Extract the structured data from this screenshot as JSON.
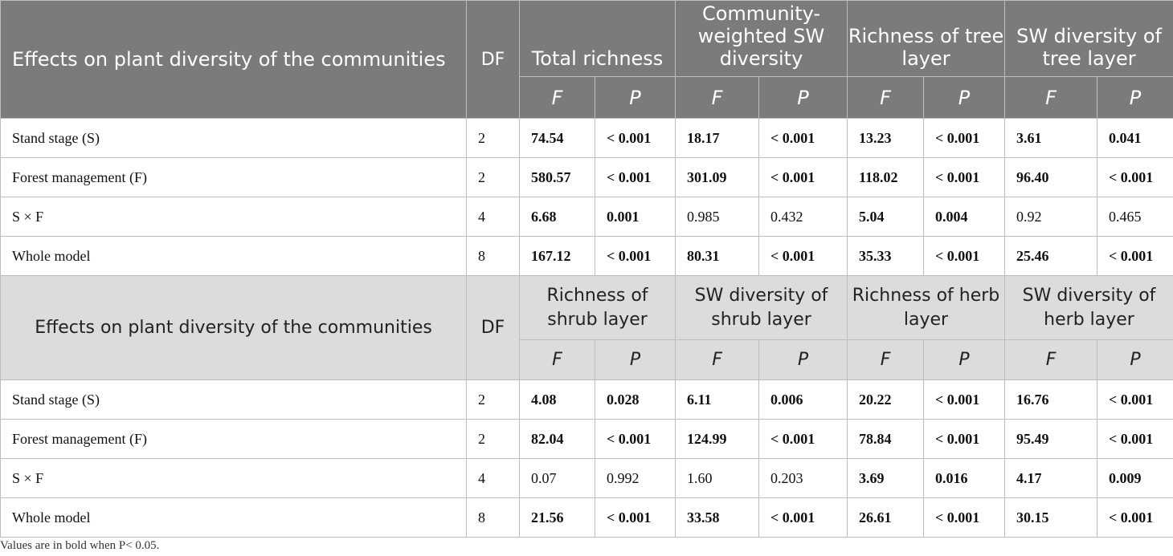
{
  "table1": {
    "title": "Effects on plant diversity of the communities",
    "df_label": "DF",
    "groups": [
      "Total richness",
      "Community-weighted SW diversity",
      "Richness of tree layer",
      "SW diversity of tree layer"
    ],
    "f_label": "F",
    "p_label": "P",
    "rows": [
      {
        "label": "Stand stage (S)",
        "df": "2",
        "values": [
          "74.54",
          "< 0.001",
          "18.17",
          "< 0.001",
          "13.23",
          "< 0.001",
          "3.61",
          "0.041"
        ]
      },
      {
        "label": "Forest management (F)",
        "df": "2",
        "values": [
          "580.57",
          "< 0.001",
          "301.09",
          "< 0.001",
          "118.02",
          "< 0.001",
          "96.40",
          "< 0.001"
        ]
      },
      {
        "label": "S × F",
        "df": "4",
        "values": [
          "6.68",
          "0.001",
          "0.985",
          "0.432",
          "5.04",
          "0.004",
          "0.92",
          "0.465"
        ]
      },
      {
        "label": "Whole model",
        "df": "8",
        "values": [
          "167.12",
          "< 0.001",
          "80.31",
          "< 0.001",
          "35.33",
          "< 0.001",
          "25.46",
          "< 0.001"
        ]
      }
    ]
  },
  "table2": {
    "title": "Effects on plant diversity of the communities",
    "df_label": "DF",
    "groups": [
      "Richness of shrub layer",
      "SW diversity of shrub layer",
      "Richness of herb layer",
      "SW diversity of herb layer"
    ],
    "f_label": "F",
    "p_label": "P",
    "rows": [
      {
        "label": "Stand stage (S)",
        "df": "2",
        "values": [
          "4.08",
          "0.028",
          "6.11",
          "0.006",
          "20.22",
          "< 0.001",
          "16.76",
          "< 0.001"
        ]
      },
      {
        "label": "Forest management (F)",
        "df": "2",
        "values": [
          "82.04",
          "< 0.001",
          "124.99",
          "< 0.001",
          "78.84",
          "< 0.001",
          "95.49",
          "< 0.001"
        ]
      },
      {
        "label": "S × F",
        "df": "4",
        "values": [
          "0.07",
          "0.992",
          "1.60",
          "0.203",
          "3.69",
          "0.016",
          "4.17",
          "0.009"
        ]
      },
      {
        "label": "Whole model",
        "df": "8",
        "values": [
          "21.56",
          "< 0.001",
          "33.58",
          "< 0.001",
          "26.61",
          "< 0.001",
          "30.15",
          "< 0.001"
        ]
      }
    ]
  },
  "footnote": "Values are in bold when P< 0.05."
}
